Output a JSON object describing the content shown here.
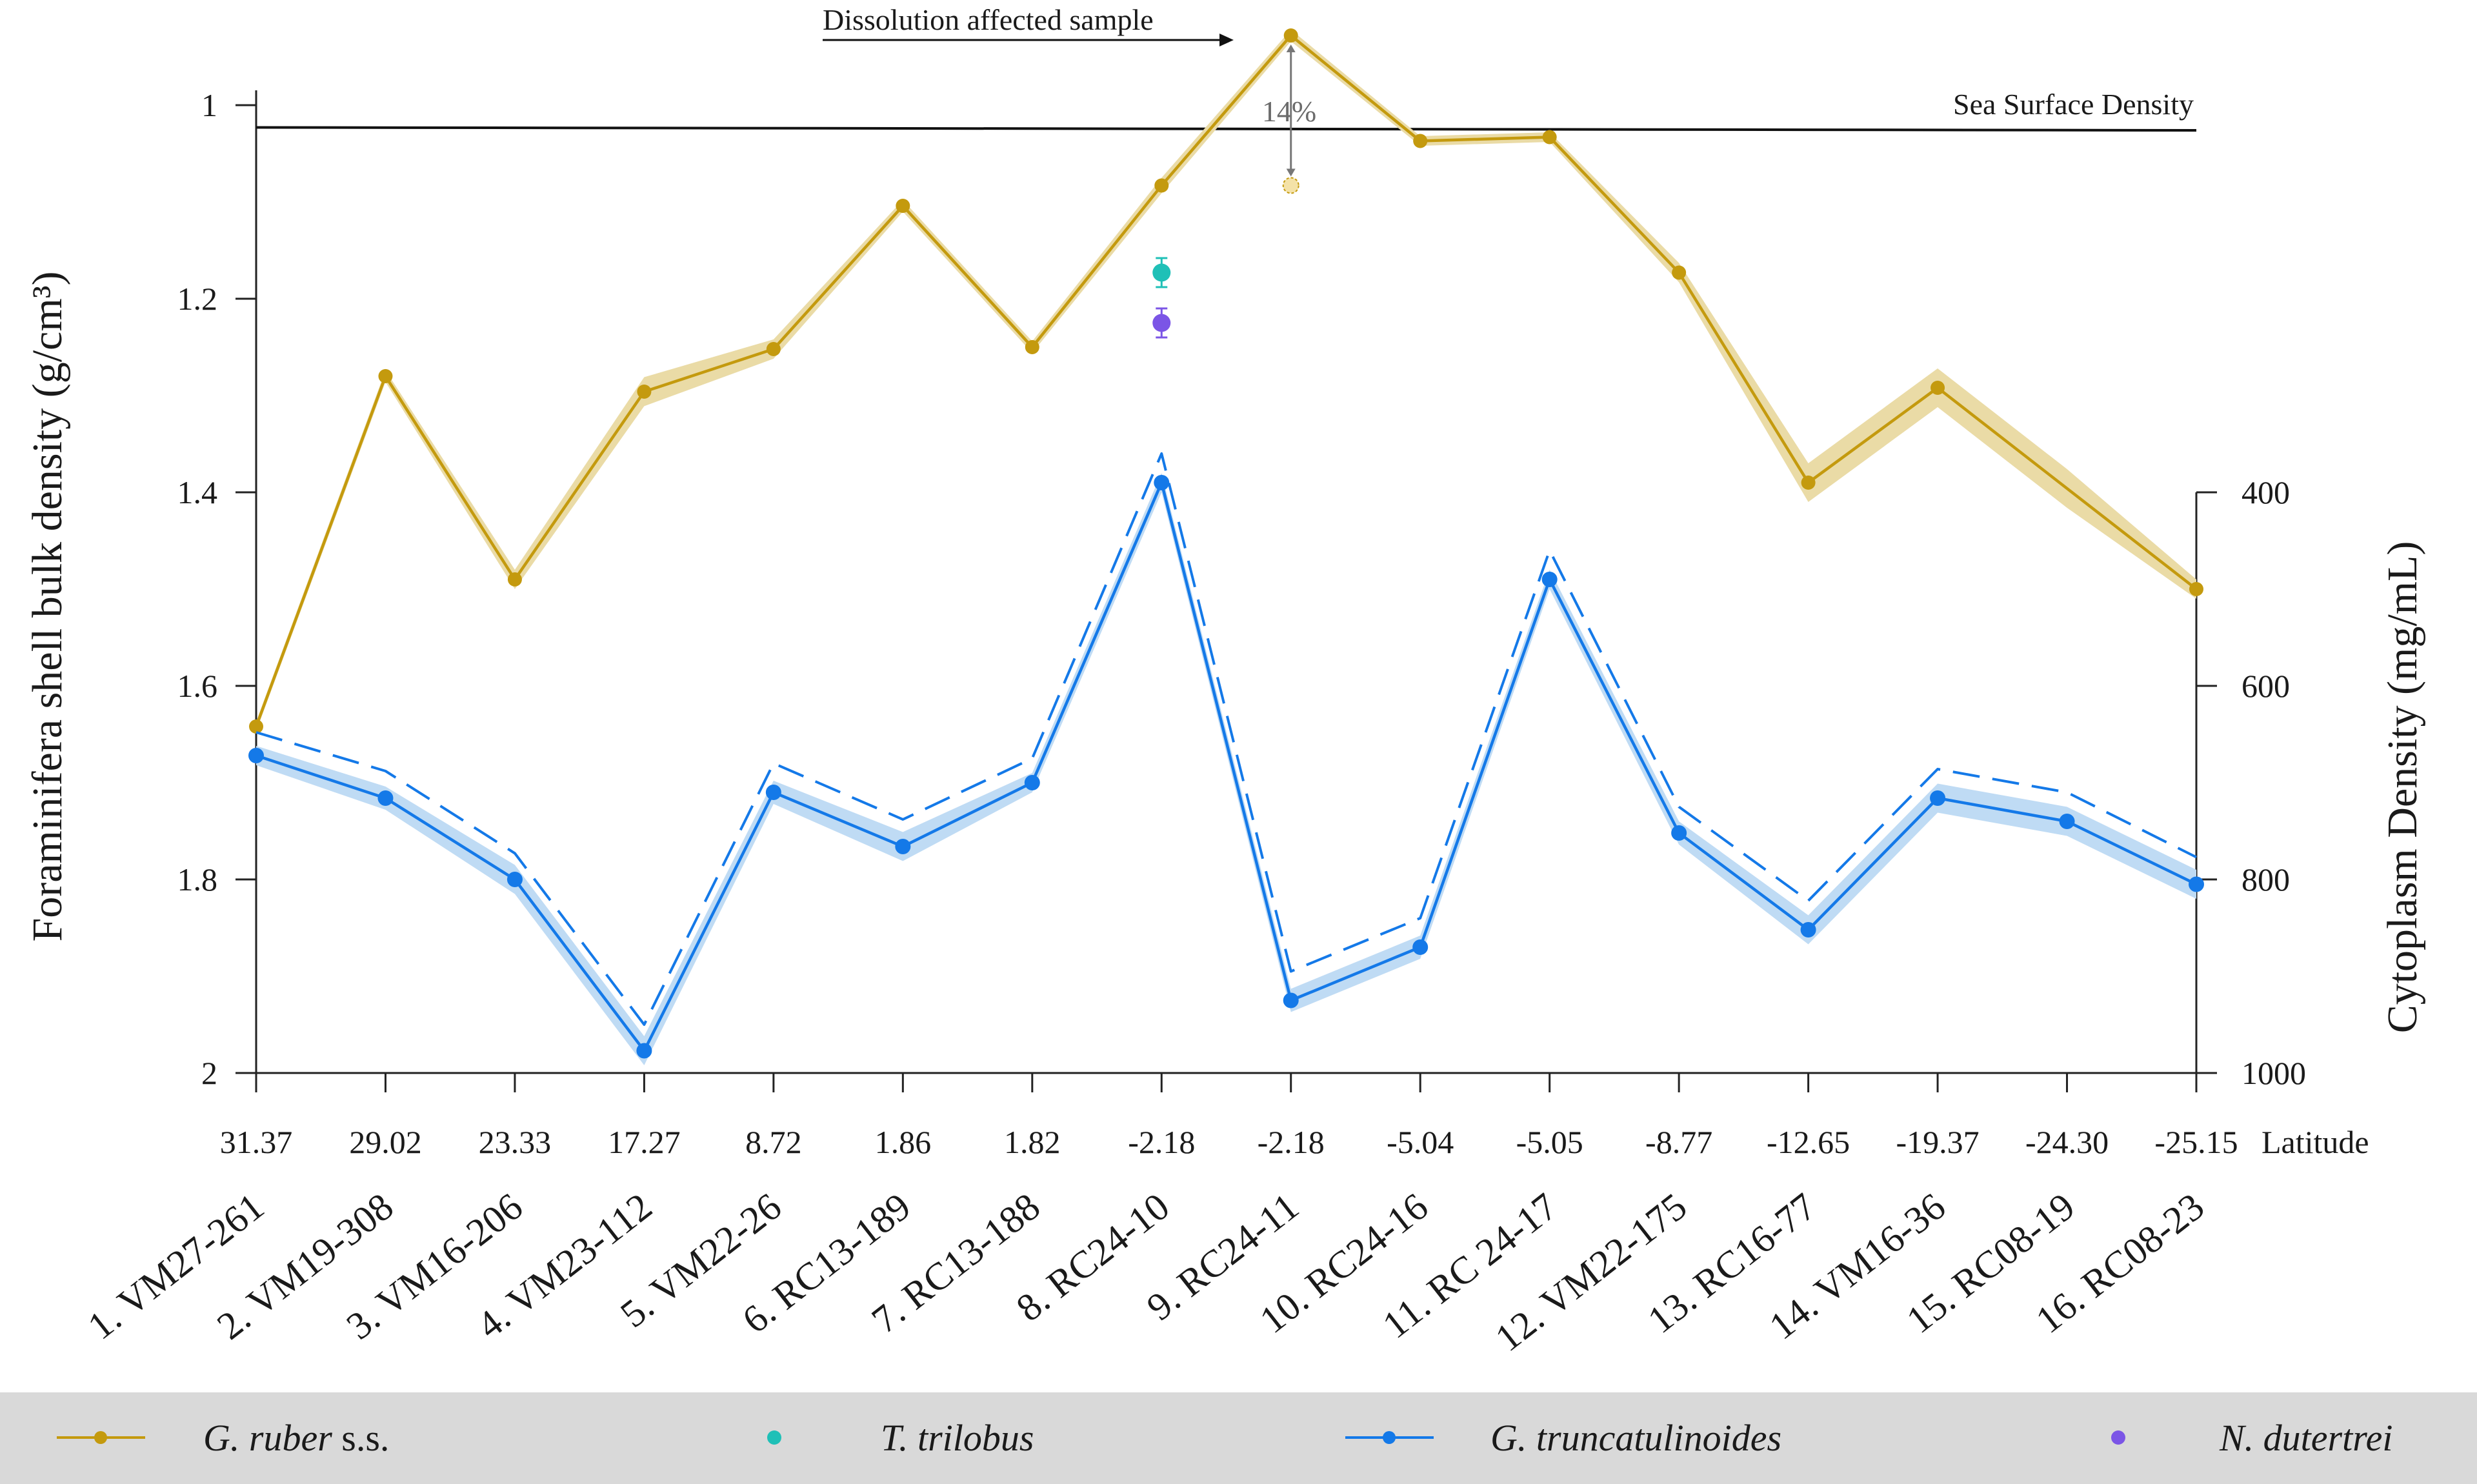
{
  "chart_data": {
    "type": "line",
    "ylabel_left": "Foraminifera shell bulk density (g/cm³)",
    "ylabel_right": "Cytoplasm Density (mg/mL)",
    "xlabel": "Latitude",
    "ylim_left": [
      2,
      0.93
    ],
    "yticks_left": [
      "1",
      "1.2",
      "1.4",
      "1.6",
      "1.8",
      "2"
    ],
    "yticks_right": [
      "400",
      "600",
      "800",
      "1000"
    ],
    "latitudes": [
      "31.37",
      "29.02",
      "23.33",
      "17.27",
      "8.72",
      "1.86",
      "1.82",
      "-2.18",
      "-2.18",
      "-5.04",
      "-5.05",
      "-8.77",
      "-12.65",
      "-19.37",
      "-24.30",
      "-25.15"
    ],
    "samples": [
      "1. VM27-261",
      "2. VM19-308",
      "3. VM16-206",
      "4. VM23-112",
      "5. VM22-26",
      "6. RC13-189",
      "7. RC13-188",
      "8. RC24-10",
      "9. RC24-11",
      "10. RC24-16",
      "11. RC 24-17",
      "12. VM22-175",
      "13. RC16-77",
      "14. VM16-36",
      "15. RC08-19",
      "16. RC08-23"
    ],
    "series": [
      {
        "name": "G. ruber s.s.",
        "color": "#C49A0E",
        "band_color": "#EADBA6",
        "values": [
          1.642,
          1.28,
          1.49,
          1.296,
          1.252,
          1.104,
          1.25,
          1.083,
          0.928,
          1.037,
          1.033,
          1.173,
          1.39,
          1.292,
          null,
          1.5
        ],
        "band": [
          0.005,
          0.006,
          0.01,
          0.015,
          0.01,
          0.006,
          0.006,
          0.008,
          0.006,
          0.005,
          0.005,
          0.01,
          0.02,
          0.02,
          0.02,
          0.01
        ]
      },
      {
        "name": "T. trilobus",
        "color": "#1FC0B7",
        "x_index": 7,
        "value": 1.173,
        "error": 0.015
      },
      {
        "name": "G. truncatulinoides",
        "color": "#1479E8",
        "band_color": "#BFDBF4",
        "values": [
          1.672,
          1.716,
          1.8,
          1.977,
          1.71,
          1.766,
          1.7,
          1.39,
          1.925,
          1.87,
          1.49,
          1.752,
          1.852,
          1.716,
          1.74,
          1.805
        ],
        "band": [
          0.01,
          0.012,
          0.015,
          0.015,
          0.012,
          0.015,
          0.01,
          0.01,
          0.012,
          0.012,
          0.01,
          0.012,
          0.015,
          0.015,
          0.015,
          0.015
        ]
      },
      {
        "name": "N. dutertrei",
        "color": "#7B55E6",
        "x_index": 7,
        "value": 1.225,
        "error": 0.015
      }
    ],
    "cytoplasm_dashed": [
      1.648,
      1.688,
      1.773,
      1.95,
      1.68,
      1.738,
      1.675,
      1.36,
      1.895,
      1.84,
      1.46,
      1.725,
      1.822,
      1.686,
      1.71,
      1.777
    ],
    "dissolution_point": {
      "x_index": 8,
      "value": 1.083
    },
    "sea_surface_density": {
      "y_start": 1.023,
      "y_end": 1.026,
      "label": "Sea Surface Density"
    },
    "annotations": {
      "dissolution_label": "Dissolution affected sample",
      "percent_label": "14%"
    },
    "legend": {
      "position": "bottom",
      "background": "#D9D9D9",
      "items": [
        {
          "italic": "G. ruber",
          "plain": " s.s.",
          "marker": "line-dot",
          "color": "#C49A0E"
        },
        {
          "italic": "T. trilobus",
          "plain": "",
          "marker": "dot",
          "color": "#1FC0B7"
        },
        {
          "italic": "G. truncatulinoides",
          "plain": "",
          "marker": "line-dot",
          "color": "#1479E8"
        },
        {
          "italic": "N. dutertrei",
          "plain": "",
          "marker": "dot",
          "color": "#7B55E6"
        }
      ]
    }
  }
}
